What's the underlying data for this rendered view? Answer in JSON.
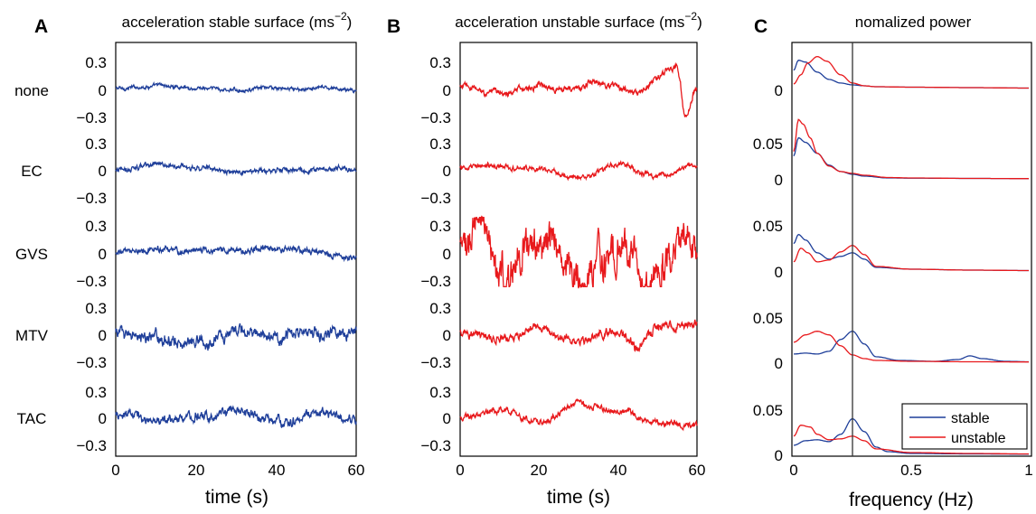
{
  "colors": {
    "stable": "#1f3f9a",
    "unstable": "#e8191c",
    "frame": "#000000",
    "vline": "#333333"
  },
  "rows": [
    "none",
    "EC",
    "GVS",
    "MTV",
    "TAC"
  ],
  "panels": [
    {
      "letter": "A",
      "title": "acceleration stable surface (ms",
      "title_sup": "−2",
      "title_close": ")",
      "xlabel": "time (s)",
      "xticks": [
        "0",
        "20",
        "40",
        "60"
      ],
      "xlim": [
        0,
        60
      ],
      "yticks": [
        "0.3",
        "0",
        "−0.3"
      ],
      "color_key": "stable"
    },
    {
      "letter": "B",
      "title": "acceleration unstable surface (ms",
      "title_sup": "−2",
      "title_close": ")",
      "xlabel": "time (s)",
      "xticks": [
        "0",
        "20",
        "40",
        "60"
      ],
      "xlim": [
        0,
        60
      ],
      "yticks": [
        "0.3",
        "0",
        "−0.3"
      ],
      "color_key": "unstable"
    },
    {
      "letter": "C",
      "title": "nomalized power",
      "xlabel": "frequency (Hz)",
      "xticks": [
        "0",
        "0.5",
        "1"
      ],
      "xlim": [
        0,
        1
      ],
      "yticks_top": [
        "0"
      ],
      "yticks_other": [
        "0.05",
        "0"
      ],
      "vline_x": 0.25,
      "legend": [
        "stable",
        "unstable"
      ]
    }
  ],
  "chart_data": [
    {
      "type": "line",
      "title": "acceleration stable surface (ms−2)",
      "xlabel": "time (s)",
      "xlim": [
        0,
        60
      ],
      "ylim_per_row": [
        -0.35,
        0.35
      ],
      "series": [
        {
          "name": "none",
          "amplitude": 0.03,
          "x": [
            0,
            10,
            20,
            30,
            40,
            50,
            60
          ],
          "y": [
            0,
            0.03,
            0,
            -0.02,
            0.01,
            0,
            -0.01
          ]
        },
        {
          "name": "EC",
          "amplitude": 0.04,
          "x": [
            0,
            10,
            20,
            30,
            40,
            50,
            60
          ],
          "y": [
            0,
            0.05,
            0.03,
            -0.03,
            -0.01,
            0,
            0.02
          ]
        },
        {
          "name": "GVS",
          "amplitude": 0.05,
          "x": [
            0,
            10,
            20,
            30,
            40,
            50,
            60
          ],
          "y": [
            -0.01,
            0.03,
            0.01,
            0.02,
            0.04,
            0,
            -0.08
          ]
        },
        {
          "name": "MTV",
          "amplitude": 0.1,
          "x": [
            0,
            10,
            20,
            30,
            40,
            50,
            60
          ],
          "y": [
            0.05,
            -0.05,
            -0.1,
            0.05,
            -0.05,
            0,
            0.05
          ]
        },
        {
          "name": "TAC",
          "amplitude": 0.08,
          "x": [
            0,
            10,
            20,
            30,
            40,
            50,
            60
          ],
          "y": [
            0.04,
            -0.04,
            0.02,
            0.06,
            -0.06,
            0.05,
            0
          ]
        }
      ]
    },
    {
      "type": "line",
      "title": "acceleration unstable surface (ms−2)",
      "xlabel": "time (s)",
      "xlim": [
        0,
        60
      ],
      "ylim_per_row": [
        -0.35,
        0.35
      ],
      "series": [
        {
          "name": "none",
          "amplitude": 0.05,
          "x": [
            0,
            10,
            20,
            30,
            35,
            45,
            55,
            57,
            60
          ],
          "y": [
            0.01,
            -0.04,
            0.02,
            0,
            0.08,
            -0.03,
            0.25,
            -0.3,
            0
          ]
        },
        {
          "name": "EC",
          "amplitude": 0.04,
          "x": [
            0,
            10,
            20,
            30,
            40,
            50,
            60
          ],
          "y": [
            0.01,
            0.05,
            0,
            -0.08,
            0.05,
            -0.06,
            0.05
          ]
        },
        {
          "name": "GVS",
          "amplitude": 0.3,
          "x": [
            0,
            5,
            10,
            20,
            30,
            40,
            48,
            55,
            60
          ],
          "y": [
            0.1,
            0.3,
            -0.3,
            0.1,
            -0.25,
            0.05,
            -0.35,
            0.1,
            0
          ]
        },
        {
          "name": "MTV",
          "amplitude": 0.07,
          "x": [
            0,
            10,
            20,
            30,
            40,
            45,
            50,
            60
          ],
          "y": [
            0.02,
            -0.05,
            0.05,
            -0.08,
            0.03,
            -0.15,
            0.08,
            0.1
          ]
        },
        {
          "name": "TAC",
          "amplitude": 0.05,
          "x": [
            0,
            10,
            20,
            30,
            40,
            50,
            60
          ],
          "y": [
            0,
            0.08,
            -0.05,
            0.15,
            0.05,
            -0.05,
            -0.08
          ]
        }
      ]
    },
    {
      "type": "line",
      "title": "nomalized power",
      "xlabel": "frequency (Hz)",
      "xlim": [
        0,
        1
      ],
      "ylim_per_row": [
        0,
        0.07
      ],
      "vertical_line_at": 0.25,
      "legend": [
        "stable",
        "unstable"
      ],
      "legend_position": "bottom-right",
      "rows": [
        {
          "name": "none",
          "series": [
            {
              "name": "stable",
              "x": [
                0,
                0.02,
                0.05,
                0.1,
                0.15,
                0.2,
                0.25,
                0.3,
                0.35,
                0.5,
                0.75,
                1.0
              ],
              "y": [
                0.02,
                0.031,
                0.029,
                0.018,
                0.01,
                0.006,
                0.004,
                0.003,
                0.002,
                0.0015,
                0.001,
                0.0005
              ]
            },
            {
              "name": "unstable",
              "x": [
                0,
                0.03,
                0.06,
                0.1,
                0.14,
                0.2,
                0.25,
                0.3,
                0.35,
                0.5,
                0.75,
                1.0
              ],
              "y": [
                0.005,
                0.015,
                0.028,
                0.035,
                0.03,
                0.015,
                0.006,
                0.003,
                0.002,
                0.0015,
                0.001,
                0.0005
              ]
            }
          ]
        },
        {
          "name": "EC",
          "series": [
            {
              "name": "stable",
              "x": [
                0,
                0.02,
                0.05,
                0.1,
                0.15,
                0.2,
                0.25,
                0.3,
                0.4,
                0.5,
                0.75,
                1.0
              ],
              "y": [
                0.025,
                0.045,
                0.04,
                0.028,
                0.015,
                0.008,
                0.005,
                0.003,
                0.001,
                0.0008,
                0.0005,
                0.0003
              ]
            },
            {
              "name": "unstable",
              "x": [
                0,
                0.02,
                0.04,
                0.07,
                0.1,
                0.15,
                0.2,
                0.25,
                0.3,
                0.4,
                0.5,
                0.75,
                1.0
              ],
              "y": [
                0.03,
                0.065,
                0.06,
                0.045,
                0.028,
                0.014,
                0.008,
                0.006,
                0.004,
                0.0015,
                0.001,
                0.0005,
                0.0003
              ]
            }
          ]
        },
        {
          "name": "GVS",
          "series": [
            {
              "name": "stable",
              "x": [
                0,
                0.02,
                0.05,
                0.1,
                0.15,
                0.2,
                0.25,
                0.3,
                0.35,
                0.5,
                0.75,
                1.0
              ],
              "y": [
                0.03,
                0.04,
                0.034,
                0.02,
                0.013,
                0.016,
                0.02,
                0.013,
                0.004,
                0.002,
                0.001,
                0.0005
              ]
            },
            {
              "name": "unstable",
              "x": [
                0,
                0.03,
                0.06,
                0.1,
                0.15,
                0.2,
                0.25,
                0.3,
                0.35,
                0.5,
                0.75,
                1.0
              ],
              "y": [
                0.01,
                0.025,
                0.02,
                0.01,
                0.012,
                0.021,
                0.028,
                0.018,
                0.005,
                0.002,
                0.001,
                0.0005
              ]
            }
          ]
        },
        {
          "name": "MTV",
          "series": [
            {
              "name": "stable",
              "x": [
                0,
                0.05,
                0.1,
                0.15,
                0.2,
                0.25,
                0.3,
                0.35,
                0.45,
                0.6,
                0.7,
                0.75,
                0.8,
                0.9,
                1.0
              ],
              "y": [
                0.009,
                0.01,
                0.009,
                0.012,
                0.025,
                0.034,
                0.02,
                0.006,
                0.002,
                0.001,
                0.003,
                0.007,
                0.004,
                0.001,
                0.0005
              ]
            },
            {
              "name": "unstable",
              "x": [
                0,
                0.05,
                0.1,
                0.15,
                0.2,
                0.25,
                0.3,
                0.35,
                0.5,
                0.75,
                1.0
              ],
              "y": [
                0.022,
                0.03,
                0.034,
                0.03,
                0.018,
                0.008,
                0.004,
                0.002,
                0.001,
                0.0005,
                0.0003
              ]
            }
          ]
        },
        {
          "name": "TAC",
          "series": [
            {
              "name": "stable",
              "x": [
                0,
                0.05,
                0.1,
                0.15,
                0.2,
                0.25,
                0.3,
                0.35,
                0.4,
                0.5,
                0.75,
                1.0
              ],
              "y": [
                0.01,
                0.015,
                0.016,
                0.014,
                0.022,
                0.039,
                0.025,
                0.008,
                0.003,
                0.001,
                0.0005,
                0.0003
              ]
            },
            {
              "name": "unstable",
              "x": [
                0,
                0.03,
                0.07,
                0.1,
                0.15,
                0.2,
                0.25,
                0.3,
                0.35,
                0.5,
                0.75,
                1.0
              ],
              "y": [
                0.02,
                0.032,
                0.03,
                0.022,
                0.016,
                0.017,
                0.02,
                0.015,
                0.006,
                0.002,
                0.001,
                0.0005
              ]
            }
          ]
        }
      ]
    }
  ]
}
